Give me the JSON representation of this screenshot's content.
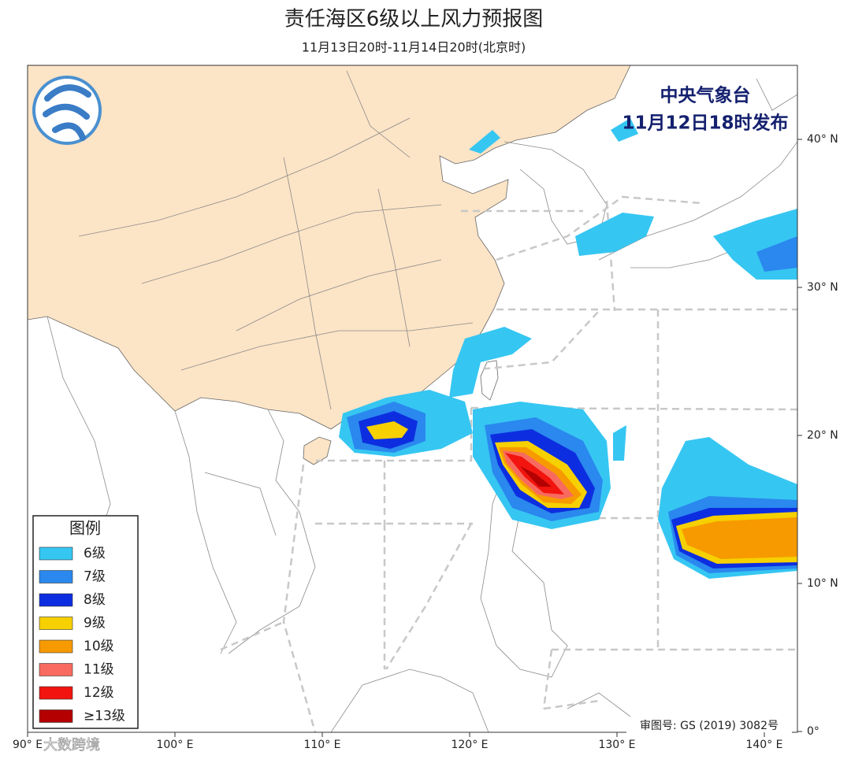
{
  "header": {
    "title": "责任海区6级以上风力预报图",
    "subtitle": "11月13日20时-11月14日20时(北京时)"
  },
  "issuer": {
    "agency": "中央气象台",
    "issued": "11月12日18时发布"
  },
  "legend": {
    "title": "图例",
    "items": [
      {
        "label": "6级",
        "color": "#36c6f2"
      },
      {
        "label": "7级",
        "color": "#2a88ee"
      },
      {
        "label": "8级",
        "color": "#0d2ee0"
      },
      {
        "label": "9级",
        "color": "#f6d000"
      },
      {
        "label": "10级",
        "color": "#f79a00"
      },
      {
        "label": "11级",
        "color": "#f86a60"
      },
      {
        "label": "12级",
        "color": "#f2140e"
      },
      {
        "label": "≥13级",
        "color": "#b40000"
      }
    ]
  },
  "map": {
    "lon_labels": [
      "90° E",
      "100° E",
      "110° E",
      "120° E",
      "130° E",
      "140° E"
    ],
    "lat_labels": [
      "40° N",
      "30° N",
      "20° N",
      "10° N",
      "0°"
    ],
    "review_number": "审图号: GS (2019) 3082号"
  },
  "watermark": "大数跨境"
}
